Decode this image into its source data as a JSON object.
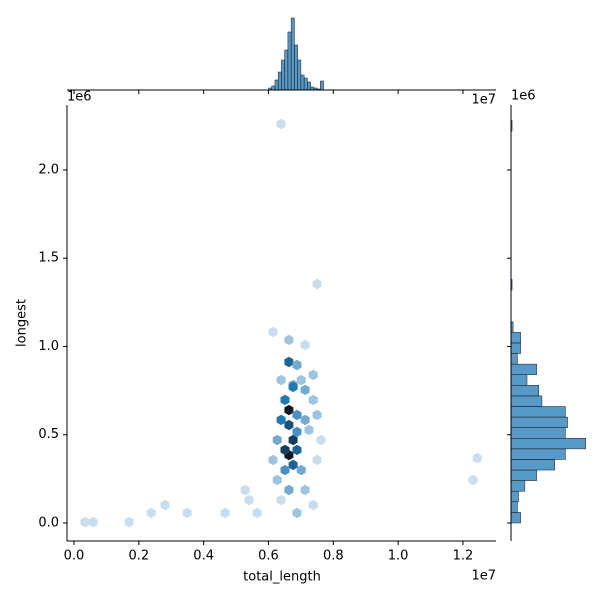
{
  "chart_data": {
    "type": "hexbin",
    "xlabel": "total_length",
    "ylabel": "longest",
    "x_offset_label": "1e7",
    "y_offset_label": "1e6",
    "xlim": [
      -216000,
      13020000
    ],
    "ylim": [
      -102000,
      2368000
    ],
    "xticks": [
      {
        "value": 0,
        "label": "0.0"
      },
      {
        "value": 2000000,
        "label": "0.2"
      },
      {
        "value": 4000000,
        "label": "0.4"
      },
      {
        "value": 6000000,
        "label": "0.6"
      },
      {
        "value": 8000000,
        "label": "0.8"
      },
      {
        "value": 10000000,
        "label": "1.0"
      },
      {
        "value": 12000000,
        "label": "1.2"
      }
    ],
    "yticks": [
      {
        "value": 0,
        "label": "0.0"
      },
      {
        "value": 500000,
        "label": "0.5"
      },
      {
        "value": 1000000,
        "label": "1.0"
      },
      {
        "value": 1500000,
        "label": "1.5"
      },
      {
        "value": 2000000,
        "label": "2.0"
      }
    ],
    "cmap": [
      "#f2f7fc",
      "#1f77b4",
      "#0b1a26"
    ],
    "x": [
      6630000,
      6630000,
      6630000,
      6630000,
      6760000,
      6760000,
      6510000,
      6880000,
      6760000,
      6760000,
      6510000,
      6390000,
      6880000,
      6510000,
      6630000,
      6880000,
      7130000,
      7250000,
      7010000,
      6270000,
      6390000,
      6880000,
      6630000,
      6140000,
      7130000,
      7380000,
      7380000,
      7620000,
      7500000,
      7500000,
      6140000,
      6270000,
      7130000,
      6390000,
      6880000,
      7380000,
      5650000,
      5400000,
      5280000,
      4660000,
      3490000,
      2810000,
      2380000,
      1700000,
      340000,
      590000,
      12310000,
      12440000,
      6390000,
      7500000,
      7130000,
      7010000
    ],
    "y": [
      640000,
      385000,
      555000,
      912000,
      782000,
      470000,
      414000,
      414000,
      329000,
      771000,
      697000,
      584000,
      612000,
      300000,
      187000,
      516000,
      584000,
      527000,
      300000,
      470000,
      810000,
      895000,
      1037000,
      1082000,
      1009000,
      839000,
      697000,
      470000,
      612000,
      357000,
      357000,
      244000,
      187000,
      130000,
      57000,
      102000,
      57000,
      130000,
      187000,
      57000,
      57000,
      102000,
      57000,
      5000,
      5000,
      5000,
      244000,
      368000,
      2261000,
      1354000,
      754000,
      810000
    ],
    "counts": [
      10,
      10,
      7,
      6,
      3,
      8,
      8,
      6,
      6,
      5,
      5,
      5,
      4,
      4,
      3,
      4,
      3,
      2,
      3,
      3,
      2,
      3,
      2,
      1,
      1,
      2,
      2,
      1,
      2,
      1,
      2,
      2,
      2,
      1,
      2,
      1,
      1,
      1,
      1,
      1,
      1,
      1,
      1,
      1,
      1,
      1,
      1,
      1,
      1,
      1,
      3,
      2
    ],
    "x_marginal": {
      "offset_label": "1e7",
      "color": "#1f77b4",
      "bins": [
        6000000,
        6100000,
        6200000,
        6300000,
        6400000,
        6500000,
        6600000,
        6700000,
        6800000,
        6900000,
        7000000,
        7100000,
        7200000,
        7300000,
        7400000,
        7500000,
        7600000,
        7700000
      ],
      "counts": [
        2,
        4,
        10,
        18,
        30,
        40,
        58,
        72,
        45,
        30,
        15,
        12,
        8,
        3,
        2,
        1,
        9
      ],
      "countlim": [
        0,
        75
      ]
    },
    "y_marginal": {
      "offset_label": "1e6",
      "color": "#1f77b4",
      "bins": [
        0,
        60000,
        120000,
        180000,
        240000,
        300000,
        360000,
        420000,
        480000,
        540000,
        600000,
        660000,
        720000,
        780000,
        840000,
        900000,
        960000,
        1020000,
        1080000,
        1140000,
        1200000,
        1260000,
        1320000,
        1380000,
        1440000,
        1500000,
        1560000,
        1620000,
        1680000,
        1740000,
        1800000,
        1860000,
        1920000,
        1980000,
        2040000,
        2100000,
        2160000,
        2220000,
        2280000
      ],
      "counts": [
        9,
        6,
        7,
        13,
        24,
        41,
        51,
        70,
        51,
        53,
        51,
        29,
        26,
        15,
        24,
        6,
        9,
        9,
        2,
        0,
        0,
        0,
        1,
        0,
        0,
        0,
        0,
        0,
        0,
        0,
        0,
        0,
        0,
        0,
        0,
        0,
        0,
        1
      ],
      "countlim": [
        0,
        75
      ]
    }
  }
}
